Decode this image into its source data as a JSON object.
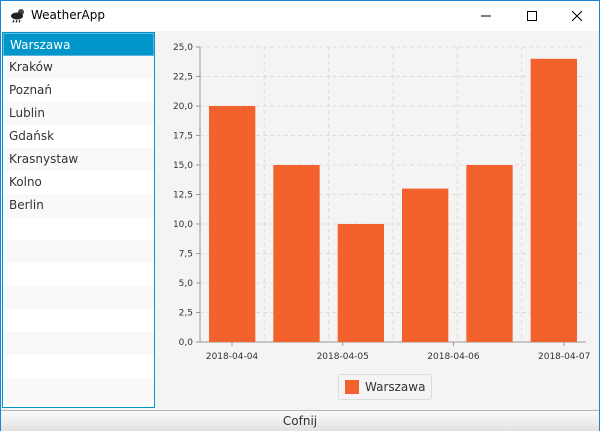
{
  "window": {
    "title": "WeatherApp",
    "app_icon": "cloud-sun-rain-icon",
    "controls": [
      "minimize-icon",
      "maximize-icon",
      "close-icon"
    ]
  },
  "cities": {
    "selected_index": 0,
    "items": [
      "Warszawa",
      "Kraków",
      "Poznań",
      "Lublin",
      "Gdańsk",
      "Krasnystaw",
      "Kolno",
      "Berlin"
    ]
  },
  "chart_data": {
    "type": "bar",
    "categories": [
      "2018-04-04",
      "2018-04-04",
      "2018-04-05",
      "2018-04-06",
      "2018-04-06",
      "2018-04-07"
    ],
    "x_tick_labels": [
      "2018-04-04",
      "2018-04-05",
      "2018-04-06",
      "2018-04-07"
    ],
    "series": [
      {
        "name": "Warszawa",
        "values": [
          20,
          15,
          10,
          13,
          15,
          24
        ],
        "color": "#f3622d"
      }
    ],
    "y_tick_labels": [
      "0,0",
      "2,5",
      "5,0",
      "7,5",
      "10,0",
      "12,5",
      "15,0",
      "17,5",
      "20,0",
      "22,5",
      "25,0"
    ],
    "ylim": [
      0,
      25
    ],
    "grid": true,
    "legend_position": "bottom"
  },
  "footer": {
    "back_label": "Cofnij"
  },
  "colors": {
    "accent": "#0096c9",
    "bar": "#f3622d"
  }
}
